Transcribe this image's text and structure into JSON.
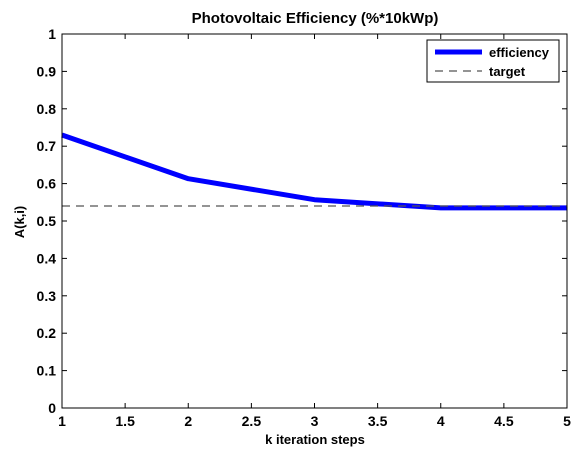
{
  "chart_data": {
    "type": "line",
    "title": "Photovoltaic Efficiency (%*10kWp)",
    "xlabel": "k iteration steps",
    "ylabel": "A(k,i)",
    "xlim": [
      1,
      5
    ],
    "ylim": [
      0,
      1
    ],
    "xticks": [
      "1",
      "1.5",
      "2",
      "2.5",
      "3",
      "3.5",
      "4",
      "4.5",
      "5"
    ],
    "yticks": [
      "0",
      "0.1",
      "0.2",
      "0.3",
      "0.4",
      "0.5",
      "0.6",
      "0.7",
      "0.8",
      "0.9",
      "1"
    ],
    "grid": false,
    "legend_position": "top-right",
    "series": [
      {
        "name": "efficiency",
        "x": [
          1,
          2,
          3,
          4,
          5
        ],
        "y": [
          0.73,
          0.613,
          0.557,
          0.535,
          0.535
        ],
        "color": "#0000ff",
        "style": "solid"
      },
      {
        "name": "target",
        "x": [
          1,
          5
        ],
        "y": [
          0.54,
          0.54
        ],
        "color": "#555555",
        "style": "dashed"
      }
    ]
  }
}
